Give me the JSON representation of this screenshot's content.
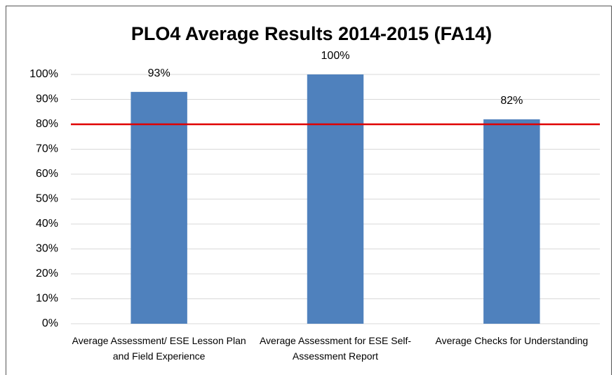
{
  "chart_data": {
    "type": "bar",
    "title": "PLO4 Average Results 2014-2015 (FA14)",
    "categories": [
      "Average Assessment/ ESE Lesson Plan and Field Experience",
      "Average Assessment for ESE Self-Assessment Report",
      "Average Checks for Understanding"
    ],
    "values": [
      93,
      100,
      82
    ],
    "value_labels": [
      "93%",
      "100%",
      "82%"
    ],
    "color": "#4f81bd",
    "ylim": [
      0,
      100
    ],
    "yticks": [
      {
        "value": 0,
        "label": "0%"
      },
      {
        "value": 10,
        "label": "10%"
      },
      {
        "value": 20,
        "label": "20%"
      },
      {
        "value": 30,
        "label": "30%"
      },
      {
        "value": 40,
        "label": "40%"
      },
      {
        "value": 50,
        "label": "50%"
      },
      {
        "value": 60,
        "label": "60%"
      },
      {
        "value": 70,
        "label": "70%"
      },
      {
        "value": 80,
        "label": "80%"
      },
      {
        "value": 90,
        "label": "90%"
      },
      {
        "value": 100,
        "label": "100%"
      }
    ],
    "grid": true,
    "reference_line": {
      "value": 80,
      "color": "#e00000"
    }
  }
}
